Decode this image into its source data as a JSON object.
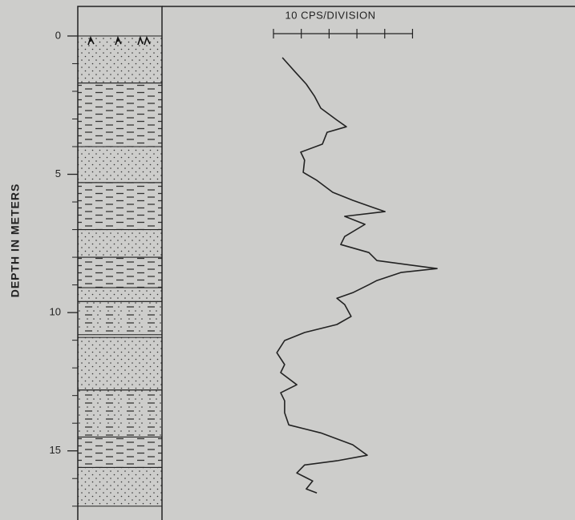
{
  "chart_data": {
    "type": "log",
    "y_label": "DEPTH IN METERS",
    "scale_label": "10 CPS/DIVISION",
    "scale_ticks": [
      0,
      10,
      20,
      30,
      40,
      50
    ],
    "ylim": [
      -1.07,
      17.5
    ],
    "xlim": [
      0,
      108.4
    ],
    "yticks": [
      0,
      5,
      10,
      15
    ],
    "minor_yticks": [
      1,
      2,
      3,
      4,
      6,
      7,
      8,
      9,
      11,
      12,
      13,
      14,
      16,
      17
    ],
    "color": "#222222",
    "lithology": [
      {
        "top": 0,
        "bottom": 1.7,
        "pattern": "dots"
      },
      {
        "top": 1.7,
        "bottom": 4.0,
        "pattern": "dashes"
      },
      {
        "top": 4.0,
        "bottom": 5.3,
        "pattern": "dots"
      },
      {
        "top": 5.3,
        "bottom": 7.0,
        "pattern": "dashes"
      },
      {
        "top": 7.0,
        "bottom": 8.0,
        "pattern": "dots"
      },
      {
        "top": 8.0,
        "bottom": 9.1,
        "pattern": "dashes"
      },
      {
        "top": 9.1,
        "bottom": 9.6,
        "pattern": "dots"
      },
      {
        "top": 9.6,
        "bottom": 10.8,
        "pattern": "mixed"
      },
      {
        "top": 10.9,
        "bottom": 12.8,
        "pattern": "dots"
      },
      {
        "top": 12.8,
        "bottom": 14.5,
        "pattern": "mixed"
      },
      {
        "top": 14.5,
        "bottom": 15.6,
        "pattern": "dashes"
      },
      {
        "top": 15.6,
        "bottom": 17.0,
        "pattern": "dots"
      }
    ],
    "depth": [
      0.78,
      1.3,
      1.74,
      2.17,
      2.61,
      3.04,
      3.28,
      3.48,
      3.91,
      4.2,
      4.49,
      4.93,
      5.22,
      5.65,
      5.94,
      6.17,
      6.35,
      6.52,
      6.81,
      7.25,
      7.54,
      7.83,
      8.12,
      8.41,
      8.55,
      8.84,
      8.99,
      9.28,
      9.48,
      9.71,
      10.14,
      10.43,
      10.72,
      11.01,
      11.45,
      11.88,
      12.17,
      12.61,
      12.9,
      13.19,
      13.62,
      14.06,
      14.35,
      14.78,
      15.16,
      15.36,
      15.51,
      15.8,
      16.09,
      16.38,
      16.52
    ],
    "cps": [
      3.2,
      7.8,
      11.8,
      14.7,
      17.0,
      22.8,
      26.2,
      19.3,
      17.6,
      9.8,
      11.2,
      10.7,
      15.6,
      21.3,
      28.5,
      34.9,
      40.1,
      25.6,
      32.9,
      25.6,
      24.2,
      34.3,
      37.2,
      58.8,
      45.8,
      37.2,
      34.3,
      28.5,
      22.8,
      25.6,
      27.9,
      22.8,
      11.2,
      4.0,
      1.2,
      4.0,
      2.6,
      8.4,
      2.6,
      4.0,
      4.0,
      5.5,
      17.0,
      28.5,
      33.7,
      22.8,
      11.2,
      8.4,
      14.1,
      11.8,
      15.6
    ]
  }
}
